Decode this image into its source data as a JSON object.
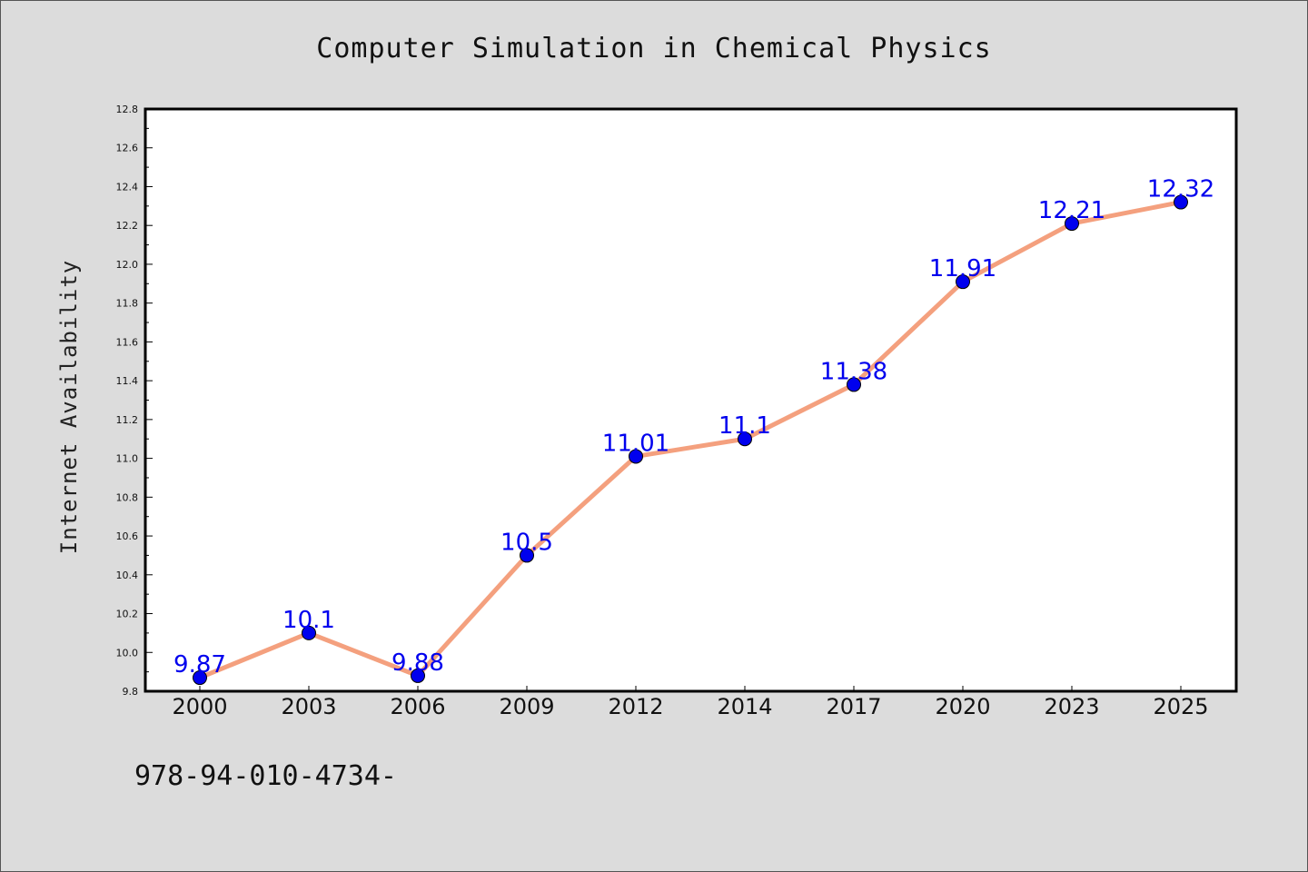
{
  "chart_data": {
    "type": "line",
    "title": "Computer Simulation in Chemical Physics",
    "xlabel": "",
    "ylabel": "Internet Availability",
    "categories": [
      "2000",
      "2003",
      "2006",
      "2009",
      "2012",
      "2014",
      "2017",
      "2020",
      "2023",
      "2025"
    ],
    "series": [
      {
        "values": [
          9.87,
          10.1,
          9.88,
          10.5,
          11.01,
          11.1,
          11.38,
          11.91,
          12.21,
          12.32
        ],
        "labels": [
          "9.87",
          "10.1",
          "9.88",
          "10.5",
          "11.01",
          "11.1",
          "11.38",
          "11.91",
          "12.21",
          "12.32"
        ]
      }
    ],
    "ylim": [
      9.8,
      12.8
    ],
    "yticks": [
      "9.8",
      "10.0",
      "10.2",
      "10.4",
      "10.6",
      "10.8",
      "11.0",
      "11.2",
      "11.4",
      "11.6",
      "11.8",
      "12.0",
      "12.2",
      "12.4",
      "12.6",
      "12.8"
    ],
    "grid": false,
    "line_color": "#f4a07e",
    "marker_color": "#0000ee",
    "label_color": "#0000ee"
  },
  "footer": {
    "code": "978-94-010-4734-"
  }
}
